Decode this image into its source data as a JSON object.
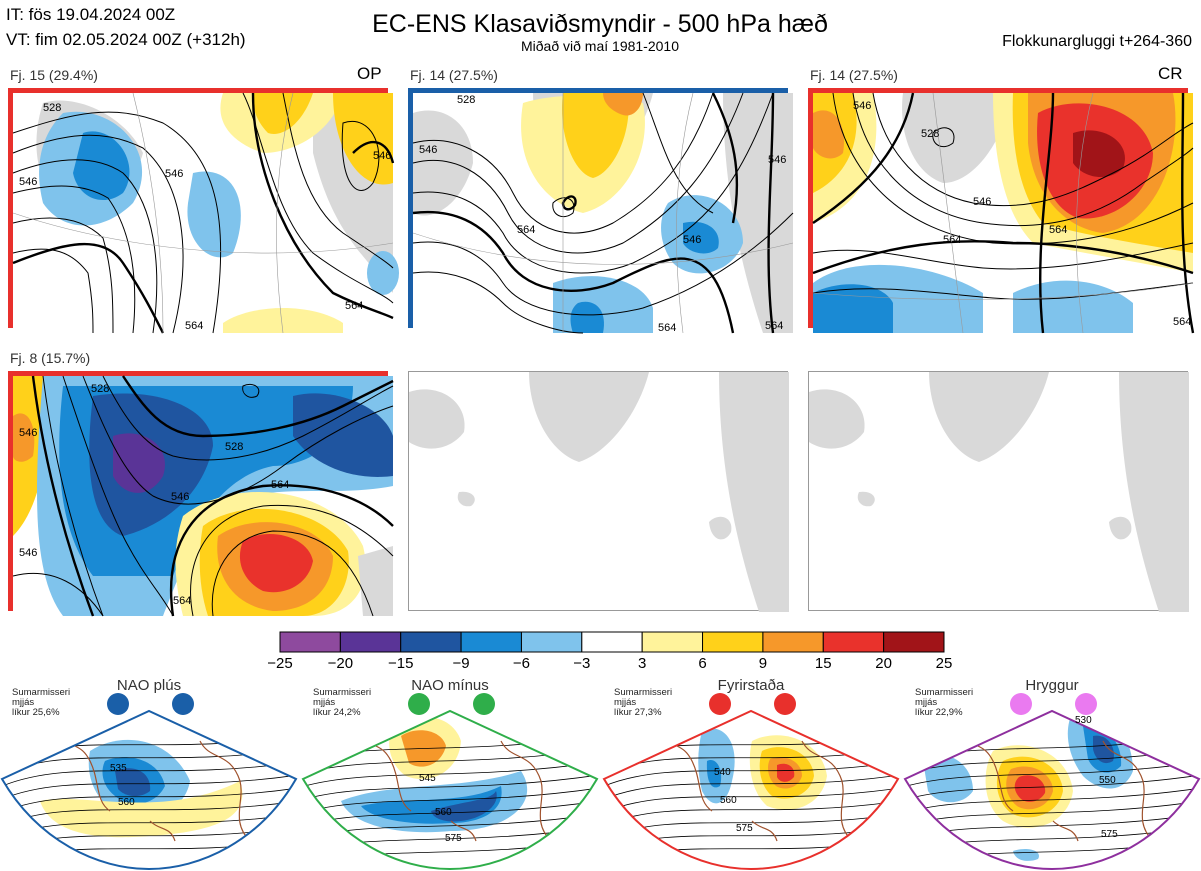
{
  "header": {
    "issue_time": "IT: fös 19.04.2024 00Z",
    "valid_time": "VT: fim 02.05.2024 00Z  (+312h)",
    "title": "EC-ENS Klasaviðsmyndir - 500 hPa hæð",
    "subtitle": "Miðað við maí 1981-2010",
    "window": "Flokkunargluggi t+264-360"
  },
  "clusters": [
    {
      "label": "Fj. 15 (29.4%)",
      "tag": "OP",
      "border": "#e8302c",
      "contour_labels": [
        "528",
        "546",
        "564",
        "546",
        "564",
        "546"
      ]
    },
    {
      "label": "Fj. 14 (27.5%)",
      "tag": "",
      "border": "#1a5fa8",
      "contour_labels": [
        "528",
        "546",
        "546",
        "564",
        "546",
        "564",
        "564"
      ]
    },
    {
      "label": "Fj. 14 (27.5%)",
      "tag": "CR",
      "border": "#e8302c",
      "contour_labels": [
        "546",
        "528",
        "546",
        "564",
        "564",
        "564"
      ]
    },
    {
      "label": "Fj. 8 (15.7%)",
      "tag": "",
      "border": "#e8302c",
      "contour_labels": [
        "528",
        "546",
        "564",
        "528",
        "546",
        "564",
        "546"
      ]
    }
  ],
  "colorbar": {
    "colors": [
      "#8e4a9e",
      "#5a3497",
      "#1f55a0",
      "#1a8ad4",
      "#7fc3ec",
      "#ffffff",
      "#fff39b",
      "#ffd11a",
      "#f6982a",
      "#e9322c",
      "#a11418"
    ],
    "ticks": [
      "−25",
      "−20",
      "−15",
      "−9",
      "−6",
      "−3",
      "3",
      "6",
      "9",
      "15",
      "20",
      "25"
    ]
  },
  "regimes": [
    {
      "name": "NAO plús",
      "note_lines": [
        "Sumarmisseri",
        "mjjás",
        "líkur 25,6%"
      ],
      "color": "#1a5fa8",
      "dot_colors": [
        "#1a5fa8",
        "#1a5fa8"
      ],
      "contour_labels": [
        "535",
        "560"
      ]
    },
    {
      "name": "NAO mínus",
      "note_lines": [
        "Sumarmisseri",
        "mjjás",
        "líkur 24,2%"
      ],
      "color": "#2fae4a",
      "dot_colors": [
        "#2fae4a",
        "#2fae4a"
      ],
      "contour_labels": [
        "545",
        "560",
        "575"
      ]
    },
    {
      "name": "Fyrirstaða",
      "note_lines": [
        "Sumarmisseri",
        "mjjás",
        "líkur 27,3%"
      ],
      "color": "#e8302c",
      "dot_colors": [
        "#e8302c",
        "#e8302c"
      ],
      "contour_labels": [
        "540",
        "560",
        "575"
      ]
    },
    {
      "name": "Hryggur",
      "note_lines": [
        "Sumarmisseri",
        "mjjás",
        "líkur 22,9%"
      ],
      "color": "#8e2f9e",
      "dot_colors": [
        "#ea7af0",
        "#ea7af0"
      ],
      "contour_labels": [
        "530",
        "550",
        "575"
      ]
    }
  ]
}
